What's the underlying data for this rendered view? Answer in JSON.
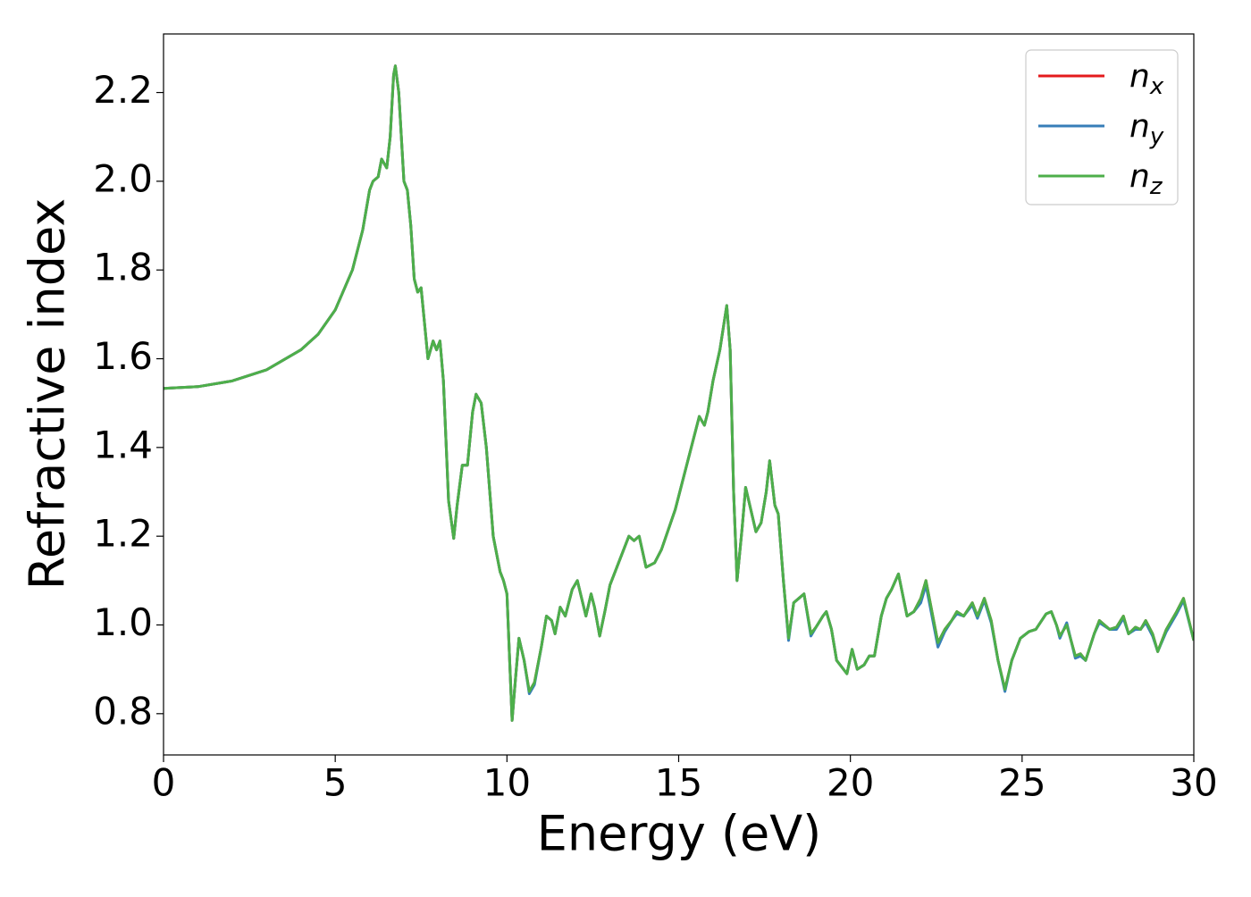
{
  "chart_data": {
    "type": "line",
    "xlabel": "Energy (eV)",
    "ylabel": "Refractive index",
    "xlim": [
      0,
      30
    ],
    "xticks": [
      0,
      5,
      10,
      15,
      20,
      25,
      30
    ],
    "ylim": [
      0.707,
      2.332
    ],
    "yticks": [
      0.8,
      1.0,
      1.2,
      1.4,
      1.6,
      1.8,
      2.0,
      2.2
    ],
    "ytick_labels": [
      "0.8",
      "1.0",
      "1.2",
      "1.4",
      "1.6",
      "1.8",
      "2.0",
      "2.2"
    ],
    "legend": "upper right",
    "grid": false,
    "x": [
      0,
      1,
      2,
      3,
      4,
      4.5,
      5,
      5.5,
      5.8,
      6.0,
      6.1,
      6.25,
      6.35,
      6.5,
      6.6,
      6.7,
      6.75,
      6.85,
      7.0,
      7.1,
      7.2,
      7.3,
      7.4,
      7.5,
      7.6,
      7.7,
      7.85,
      7.95,
      8.05,
      8.15,
      8.3,
      8.45,
      8.55,
      8.7,
      8.85,
      9.0,
      9.1,
      9.25,
      9.4,
      9.6,
      9.8,
      9.9,
      10.0,
      10.15,
      10.25,
      10.35,
      10.5,
      10.65,
      10.8,
      11.0,
      11.15,
      11.3,
      11.4,
      11.55,
      11.7,
      11.9,
      12.05,
      12.3,
      12.45,
      12.55,
      12.7,
      12.85,
      13.0,
      13.2,
      13.4,
      13.55,
      13.7,
      13.85,
      14.05,
      14.3,
      14.5,
      14.9,
      15.3,
      15.6,
      15.75,
      15.85,
      16.0,
      16.2,
      16.4,
      16.5,
      16.6,
      16.7,
      16.85,
      16.95,
      17.1,
      17.25,
      17.4,
      17.55,
      17.65,
      17.8,
      17.9,
      18.05,
      18.2,
      18.35,
      18.5,
      18.65,
      18.85,
      19.0,
      19.2,
      19.3,
      19.45,
      19.6,
      19.9,
      20.05,
      20.2,
      20.4,
      20.55,
      20.7,
      20.9,
      21.05,
      21.2,
      21.4,
      21.65,
      21.85,
      22.05,
      22.2,
      22.35,
      22.55,
      22.75,
      22.95,
      23.1,
      23.3,
      23.55,
      23.7,
      23.9,
      24.1,
      24.3,
      24.5,
      24.7,
      24.95,
      25.2,
      25.4,
      25.7,
      25.85,
      26.0,
      26.1,
      26.3,
      26.55,
      26.7,
      26.85,
      27.1,
      27.25,
      27.55,
      27.75,
      27.95,
      28.1,
      28.3,
      28.45,
      28.6,
      28.8,
      28.95,
      29.2,
      29.5,
      29.7,
      30.0
    ],
    "series": [
      {
        "name": "nx",
        "color": "#e41a1c",
        "values": [
          1.533,
          1.537,
          1.55,
          1.575,
          1.62,
          1.655,
          1.71,
          1.8,
          1.89,
          1.98,
          2.0,
          2.01,
          2.05,
          2.03,
          2.1,
          2.24,
          2.26,
          2.2,
          2.0,
          1.98,
          1.9,
          1.78,
          1.75,
          1.76,
          1.68,
          1.6,
          1.64,
          1.62,
          1.64,
          1.55,
          1.28,
          1.195,
          1.27,
          1.36,
          1.36,
          1.48,
          1.52,
          1.5,
          1.4,
          1.2,
          1.12,
          1.1,
          1.07,
          0.785,
          0.88,
          0.97,
          0.92,
          0.85,
          0.87,
          0.95,
          1.02,
          1.01,
          0.98,
          1.04,
          1.02,
          1.08,
          1.1,
          1.02,
          1.07,
          1.04,
          0.975,
          1.03,
          1.09,
          1.13,
          1.17,
          1.2,
          1.19,
          1.2,
          1.13,
          1.14,
          1.17,
          1.26,
          1.38,
          1.47,
          1.45,
          1.48,
          1.55,
          1.62,
          1.72,
          1.62,
          1.3,
          1.1,
          1.22,
          1.31,
          1.26,
          1.21,
          1.23,
          1.3,
          1.37,
          1.27,
          1.25,
          1.1,
          0.97,
          1.05,
          1.06,
          1.07,
          0.98,
          0.995,
          1.02,
          1.03,
          0.99,
          0.92,
          0.89,
          0.945,
          0.9,
          0.91,
          0.93,
          0.93,
          1.02,
          1.06,
          1.08,
          1.115,
          1.02,
          1.03,
          1.06,
          1.1,
          1.04,
          0.96,
          0.99,
          1.01,
          1.03,
          1.02,
          1.05,
          1.02,
          1.06,
          1.01,
          0.92,
          0.855,
          0.92,
          0.97,
          0.985,
          0.99,
          1.025,
          1.03,
          1.0,
          0.975,
          1.0,
          0.93,
          0.935,
          0.92,
          0.98,
          1.01,
          0.99,
          0.995,
          1.02,
          0.98,
          0.995,
          0.99,
          1.01,
          0.98,
          0.94,
          0.99,
          1.03,
          1.06,
          0.965
        ]
      },
      {
        "name": "ny",
        "color": "#377eb8",
        "values": [
          1.533,
          1.537,
          1.55,
          1.575,
          1.62,
          1.655,
          1.71,
          1.8,
          1.89,
          1.98,
          2.0,
          2.01,
          2.05,
          2.03,
          2.1,
          2.24,
          2.26,
          2.2,
          2.0,
          1.98,
          1.9,
          1.78,
          1.75,
          1.76,
          1.68,
          1.6,
          1.64,
          1.62,
          1.64,
          1.55,
          1.28,
          1.195,
          1.27,
          1.36,
          1.36,
          1.48,
          1.52,
          1.5,
          1.4,
          1.2,
          1.12,
          1.1,
          1.07,
          0.785,
          0.88,
          0.97,
          0.92,
          0.845,
          0.865,
          0.95,
          1.02,
          1.01,
          0.98,
          1.04,
          1.02,
          1.08,
          1.1,
          1.02,
          1.07,
          1.04,
          0.975,
          1.03,
          1.09,
          1.13,
          1.17,
          1.2,
          1.19,
          1.2,
          1.13,
          1.14,
          1.17,
          1.26,
          1.38,
          1.47,
          1.45,
          1.48,
          1.55,
          1.62,
          1.72,
          1.62,
          1.3,
          1.1,
          1.22,
          1.31,
          1.26,
          1.21,
          1.23,
          1.3,
          1.37,
          1.27,
          1.25,
          1.1,
          0.965,
          1.05,
          1.06,
          1.07,
          0.975,
          0.995,
          1.02,
          1.03,
          0.99,
          0.92,
          0.89,
          0.945,
          0.9,
          0.91,
          0.93,
          0.93,
          1.02,
          1.06,
          1.08,
          1.115,
          1.02,
          1.03,
          1.05,
          1.09,
          1.03,
          0.95,
          0.985,
          1.01,
          1.025,
          1.02,
          1.045,
          1.015,
          1.055,
          1.005,
          0.92,
          0.85,
          0.92,
          0.97,
          0.985,
          0.99,
          1.025,
          1.03,
          1.0,
          0.97,
          1.005,
          0.925,
          0.93,
          0.92,
          0.98,
          1.005,
          0.99,
          0.99,
          1.015,
          0.98,
          0.99,
          0.99,
          1.005,
          0.975,
          0.94,
          0.985,
          1.025,
          1.055,
          0.965
        ]
      },
      {
        "name": "nz",
        "color": "#4daf4a",
        "values": [
          1.533,
          1.537,
          1.55,
          1.575,
          1.62,
          1.655,
          1.71,
          1.8,
          1.89,
          1.98,
          2.0,
          2.01,
          2.05,
          2.03,
          2.1,
          2.24,
          2.26,
          2.2,
          2.0,
          1.98,
          1.9,
          1.78,
          1.75,
          1.76,
          1.68,
          1.6,
          1.64,
          1.62,
          1.64,
          1.55,
          1.28,
          1.195,
          1.27,
          1.36,
          1.36,
          1.48,
          1.52,
          1.5,
          1.4,
          1.2,
          1.12,
          1.1,
          1.07,
          0.785,
          0.88,
          0.97,
          0.92,
          0.85,
          0.87,
          0.95,
          1.02,
          1.01,
          0.98,
          1.04,
          1.02,
          1.08,
          1.1,
          1.02,
          1.07,
          1.04,
          0.975,
          1.03,
          1.09,
          1.13,
          1.17,
          1.2,
          1.19,
          1.2,
          1.13,
          1.14,
          1.17,
          1.26,
          1.38,
          1.47,
          1.45,
          1.48,
          1.55,
          1.62,
          1.72,
          1.62,
          1.3,
          1.1,
          1.22,
          1.31,
          1.26,
          1.21,
          1.23,
          1.3,
          1.37,
          1.27,
          1.25,
          1.1,
          0.97,
          1.05,
          1.06,
          1.07,
          0.98,
          0.995,
          1.02,
          1.03,
          0.99,
          0.92,
          0.89,
          0.945,
          0.9,
          0.91,
          0.93,
          0.93,
          1.02,
          1.06,
          1.08,
          1.115,
          1.02,
          1.03,
          1.06,
          1.1,
          1.04,
          0.96,
          0.99,
          1.01,
          1.03,
          1.02,
          1.05,
          1.02,
          1.06,
          1.01,
          0.92,
          0.855,
          0.92,
          0.97,
          0.985,
          0.99,
          1.025,
          1.03,
          1.0,
          0.975,
          1.0,
          0.93,
          0.935,
          0.92,
          0.98,
          1.01,
          0.99,
          0.995,
          1.02,
          0.98,
          0.995,
          0.99,
          1.01,
          0.98,
          0.94,
          0.99,
          1.03,
          1.06,
          0.965
        ]
      }
    ]
  }
}
